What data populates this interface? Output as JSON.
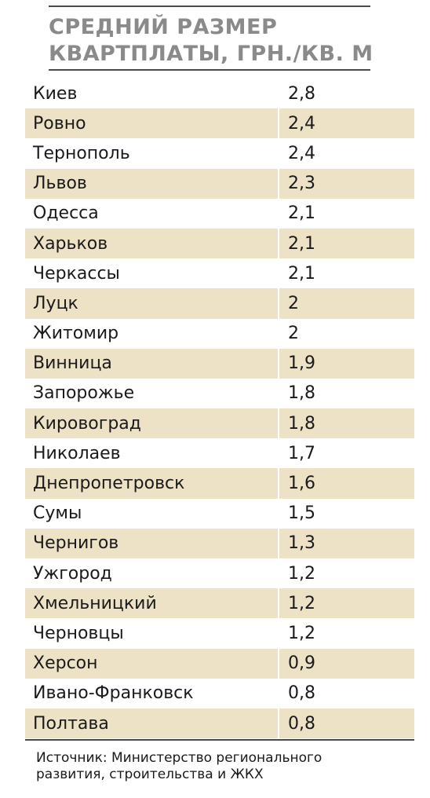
{
  "chart_data": {
    "type": "table",
    "title": "СРЕДНИЙ РАЗМЕР КВАРТПЛАТЫ, ГРН./КВ. М",
    "title_lines": [
      "СРЕДНИЙ РАЗМЕР",
      "КВАРТПЛАТЫ, ГРН./КВ. М"
    ],
    "rows": [
      {
        "city": "Киев",
        "value": "2,8"
      },
      {
        "city": "Ровно",
        "value": "2,4"
      },
      {
        "city": "Тернополь",
        "value": "2,4"
      },
      {
        "city": "Львов",
        "value": "2,3"
      },
      {
        "city": "Одесса",
        "value": "2,1"
      },
      {
        "city": "Харьков",
        "value": "2,1"
      },
      {
        "city": "Черкассы",
        "value": "2,1"
      },
      {
        "city": "Луцк",
        "value": "2"
      },
      {
        "city": "Житомир",
        "value": "2"
      },
      {
        "city": "Винница",
        "value": "1,9"
      },
      {
        "city": "Запорожье",
        "value": "1,8"
      },
      {
        "city": "Кировоград",
        "value": "1,8"
      },
      {
        "city": "Николаев",
        "value": "1,7"
      },
      {
        "city": "Днепропетровск",
        "value": "1,6"
      },
      {
        "city": "Сумы",
        "value": "1,5"
      },
      {
        "city": "Чернигов",
        "value": "1,3"
      },
      {
        "city": "Ужгород",
        "value": "1,2"
      },
      {
        "city": "Хмельницкий",
        "value": "1,2"
      },
      {
        "city": "Черновцы",
        "value": "1,2"
      },
      {
        "city": "Херсон",
        "value": "0,9"
      },
      {
        "city": "Ивано-Франковск",
        "value": "0,8"
      },
      {
        "city": "Полтава",
        "value": "0,8"
      }
    ],
    "source_lines": [
      "Источник: Министерство регионального",
      "развития, строительства и ЖКХ"
    ]
  },
  "colors": {
    "row_shade": "#ede1c6",
    "title_text": "#8a8a8a",
    "rule": "#4a4a4a"
  }
}
